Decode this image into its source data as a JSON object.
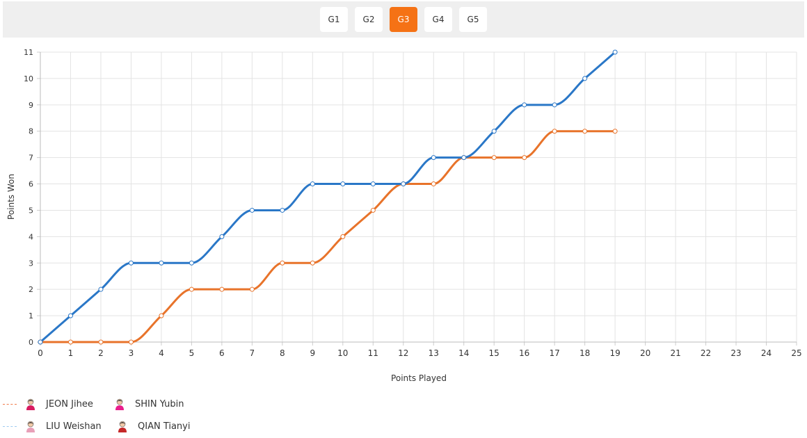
{
  "games": [
    {
      "label": "G1",
      "active": false
    },
    {
      "label": "G2",
      "active": false
    },
    {
      "label": "G3",
      "active": true
    },
    {
      "label": "G4",
      "active": false
    },
    {
      "label": "G5",
      "active": false
    }
  ],
  "chart_data": {
    "type": "line",
    "xlabel": "Points Played",
    "ylabel": "Points Won",
    "xlim": [
      0,
      25
    ],
    "ylim": [
      0,
      11
    ],
    "x_ticks": [
      0,
      1,
      2,
      3,
      4,
      5,
      6,
      7,
      8,
      9,
      10,
      11,
      12,
      13,
      14,
      15,
      16,
      17,
      18,
      19,
      20,
      21,
      22,
      23,
      24,
      25
    ],
    "y_ticks": [
      0,
      1,
      2,
      3,
      4,
      5,
      6,
      7,
      8,
      9,
      10,
      11
    ],
    "grid": true,
    "x": [
      0,
      1,
      2,
      3,
      4,
      5,
      6,
      7,
      8,
      9,
      10,
      11,
      12,
      13,
      14,
      15,
      16,
      17,
      18,
      19
    ],
    "series": [
      {
        "color": "#2a77c7",
        "values": [
          0,
          1,
          2,
          3,
          3,
          3,
          4,
          5,
          5,
          6,
          6,
          6,
          6,
          7,
          7,
          8,
          9,
          9,
          10,
          11
        ]
      },
      {
        "color": "#e8732a",
        "values": [
          0,
          0,
          0,
          0,
          1,
          2,
          2,
          2,
          3,
          3,
          4,
          5,
          6,
          6,
          7,
          7,
          7,
          8,
          8,
          8
        ]
      }
    ]
  },
  "legend": [
    {
      "team_color": "#f07a4a",
      "players": [
        {
          "name": "JEON Jihee",
          "avatar_color": "#d81b60"
        },
        {
          "name": "SHIN Yubin",
          "avatar_color": "#e91e8c"
        }
      ]
    },
    {
      "team_color": "#9ecbf0",
      "players": [
        {
          "name": "LIU Weishan",
          "avatar_color": "#e8a0b8"
        },
        {
          "name": "QIAN Tianyi",
          "avatar_color": "#c62828"
        }
      ]
    }
  ]
}
